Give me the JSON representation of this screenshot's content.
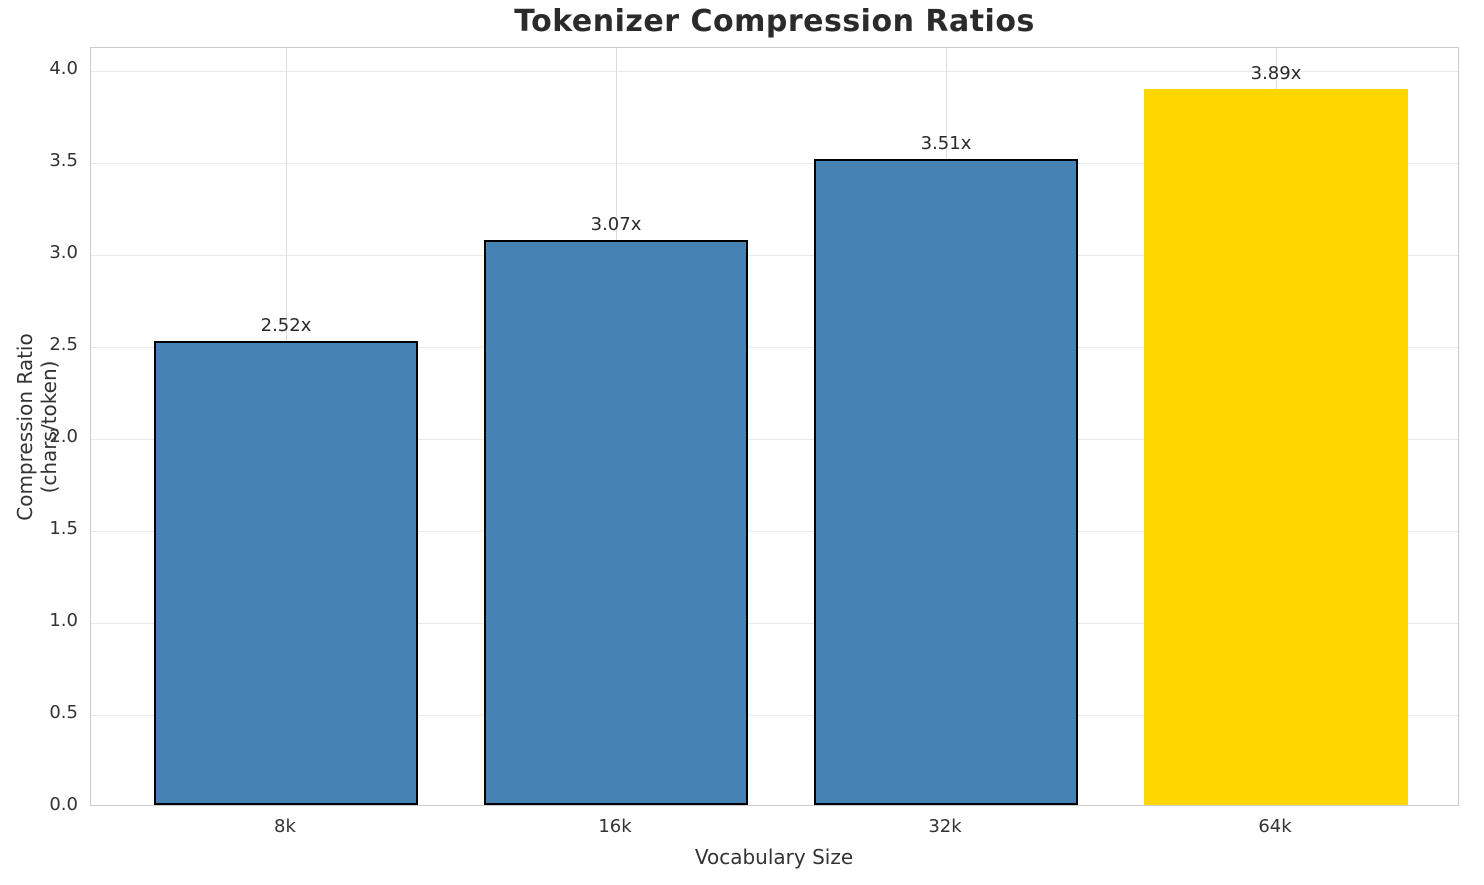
{
  "chart_data": {
    "type": "bar",
    "title": "Tokenizer Compression Ratios",
    "xlabel": "Vocabulary Size",
    "ylabel": "Compression Ratio (chars/token)",
    "categories": [
      "8k",
      "16k",
      "32k",
      "64k"
    ],
    "values": [
      2.52,
      3.07,
      3.51,
      3.89
    ],
    "bar_labels": [
      "2.52x",
      "3.07x",
      "3.51x",
      "3.89x"
    ],
    "bar_colors": [
      "#4682B4",
      "#4682B4",
      "#4682B4",
      "#FFD700"
    ],
    "bar_edge_colors": [
      "#000000",
      "#000000",
      "#000000",
      "none"
    ],
    "base_bar_color": "#4682B4",
    "highlight_bar_color": "#FFD700",
    "ylim": [
      0,
      4.125
    ],
    "yticks": [
      0.0,
      0.5,
      1.0,
      1.5,
      2.0,
      2.5,
      3.0,
      3.5,
      4.0
    ],
    "ytick_labels": [
      "0.0",
      "0.5",
      "1.0",
      "1.5",
      "2.0",
      "2.5",
      "3.0",
      "3.5",
      "4.0"
    ],
    "grid": true,
    "grid_color_horizontal": "#e9e9e9",
    "grid_color_vertical": "#dcdcdc",
    "legend": "none"
  }
}
